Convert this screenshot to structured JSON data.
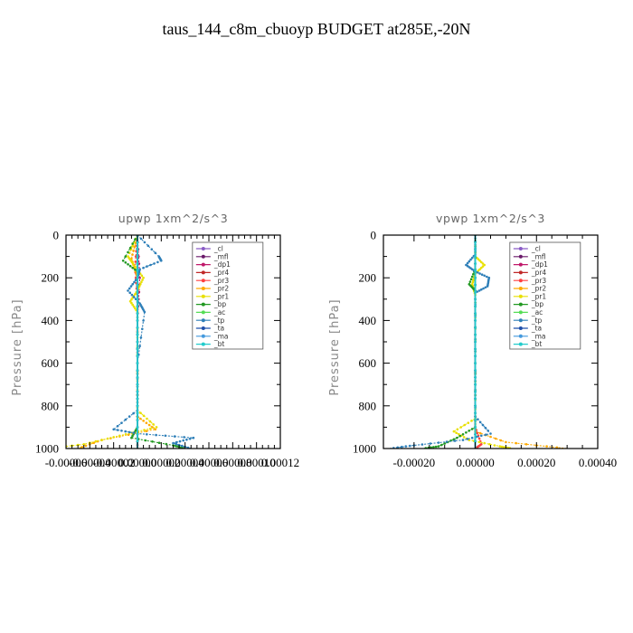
{
  "title": "taus_144_c8m_cbuoyp  BUDGET at285E,-20N",
  "chart_data": [
    {
      "type": "line",
      "title": "upwp   1xm^2/s^3",
      "ylabel": "Pressure [hPa]",
      "xlim": [
        -6e-05,
        0.00012
      ],
      "ylim": [
        1000,
        0
      ],
      "x_tick_labels": [
        "-0.00006",
        "-0.00004",
        "-0.00002",
        "0.00000",
        "0.00002",
        "0.00004",
        "0.00006",
        "0.00008",
        "0.00010",
        "0.00012"
      ],
      "y_tick_labels": [
        "0",
        "200",
        "400",
        "600",
        "800",
        "1000"
      ],
      "y_ticks": [
        0,
        200,
        400,
        600,
        800,
        1000
      ],
      "legend_position": "top-right",
      "series": [
        {
          "name": "_cl",
          "color": "#8a5cc6",
          "points": [
            [
              0.0,
              0
            ],
            [
              0.0,
              200
            ],
            [
              0.0,
              400
            ],
            [
              0.0,
              600
            ],
            [
              0.0,
              800
            ],
            [
              0.0,
              1000
            ]
          ]
        },
        {
          "name": "_mfl",
          "color": "#6a1a6a",
          "points": [
            [
              0.0,
              0
            ],
            [
              0.0,
              200
            ],
            [
              0.0,
              400
            ],
            [
              0.0,
              600
            ],
            [
              0.0,
              800
            ],
            [
              0.0,
              1000
            ]
          ]
        },
        {
          "name": "_dp1",
          "color": "#c0186a",
          "points": [
            [
              0.0,
              0
            ],
            [
              2e-06,
              200
            ],
            [
              0.0,
              400
            ],
            [
              0.0,
              600
            ],
            [
              0.0,
              800
            ],
            [
              0.0,
              1000
            ]
          ]
        },
        {
          "name": "_pr4",
          "color": "#c02828",
          "points": [
            [
              0.0,
              0
            ],
            [
              0.0,
              200
            ],
            [
              0.0,
              400
            ],
            [
              0.0,
              600
            ],
            [
              0.0,
              800
            ],
            [
              0.0,
              1000
            ]
          ]
        },
        {
          "name": "_pr3",
          "color": "#ff4040",
          "points": [
            [
              0.0,
              0
            ],
            [
              -2e-06,
              150
            ],
            [
              0.0,
              300
            ],
            [
              0.0,
              600
            ],
            [
              0.0,
              900
            ],
            [
              0.0,
              1000
            ]
          ]
        },
        {
          "name": "_pr2",
          "color": "#ffaa00",
          "points": [
            [
              0.0,
              0
            ],
            [
              -5e-06,
              110
            ],
            [
              0.0,
              200
            ],
            [
              0.0,
              600
            ],
            [
              0.0,
              850
            ],
            [
              1.5e-05,
              910
            ],
            [
              -3e-05,
              960
            ],
            [
              -5e-05,
              1000
            ]
          ]
        },
        {
          "name": "_pr1",
          "color": "#e8e000",
          "points": [
            [
              0.0,
              0
            ],
            [
              -8e-06,
              100
            ],
            [
              -3e-06,
              140
            ],
            [
              5e-06,
              200
            ],
            [
              0.0,
              260
            ],
            [
              -6e-06,
              310
            ],
            [
              0.0,
              360
            ],
            [
              0.0,
              600
            ],
            [
              0.0,
              820
            ],
            [
              1.6e-05,
              900
            ],
            [
              -1.5e-05,
              940
            ],
            [
              -4.5e-05,
              980
            ],
            [
              -7.5e-05,
              1000
            ]
          ]
        },
        {
          "name": "_bp",
          "color": "#229922",
          "points": [
            [
              0.0,
              0
            ],
            [
              -1.2e-05,
              120
            ],
            [
              0.0,
              170
            ],
            [
              0.0,
              600
            ],
            [
              0.0,
              900
            ],
            [
              -5e-06,
              950
            ],
            [
              3e-05,
              985
            ],
            [
              4e-05,
              1000
            ]
          ]
        },
        {
          "name": "_ac",
          "color": "#55dd55",
          "points": [
            [
              0.0,
              0
            ],
            [
              0.0,
              200
            ],
            [
              0.0,
              400
            ],
            [
              0.0,
              600
            ],
            [
              0.0,
              800
            ],
            [
              0.0,
              1000
            ]
          ]
        },
        {
          "name": "_tp",
          "color": "#2e7fb8",
          "points": [
            [
              0.0,
              0
            ],
            [
              1.8e-05,
              100
            ],
            [
              2e-05,
              120
            ],
            [
              2e-06,
              160
            ],
            [
              0.0,
              200
            ],
            [
              -8e-06,
              260
            ],
            [
              2e-06,
              320
            ],
            [
              6e-06,
              360
            ],
            [
              0.0,
              600
            ],
            [
              0.0,
              820
            ],
            [
              -2e-05,
              910
            ],
            [
              0.0,
              930
            ],
            [
              4.7e-05,
              950
            ],
            [
              3e-05,
              975
            ],
            [
              4.5e-05,
              1000
            ]
          ]
        },
        {
          "name": "_ta",
          "color": "#1f4faa",
          "points": [
            [
              0.0,
              0
            ],
            [
              0.0,
              200
            ],
            [
              0.0,
              400
            ],
            [
              0.0,
              600
            ],
            [
              0.0,
              800
            ],
            [
              0.0,
              1000
            ]
          ]
        },
        {
          "name": "_ma",
          "color": "#4499dd",
          "points": [
            [
              0.0,
              0
            ],
            [
              0.0,
              200
            ],
            [
              0.0,
              400
            ],
            [
              0.0,
              600
            ],
            [
              0.0,
              800
            ],
            [
              0.0,
              1000
            ]
          ]
        },
        {
          "name": "_bt",
          "color": "#22cccc",
          "points": [
            [
              0.0,
              0
            ],
            [
              0.0,
              200
            ],
            [
              0.0,
              400
            ],
            [
              0.0,
              600
            ],
            [
              0.0,
              800
            ],
            [
              0.0,
              1000
            ]
          ]
        }
      ]
    },
    {
      "type": "line",
      "title": "vpwp   1xm^2/s^3",
      "ylabel": "Pressure [hPa]",
      "xlim": [
        -0.0003,
        0.0004
      ],
      "ylim": [
        1000,
        0
      ],
      "x_tick_labels": [
        "-0.00020",
        "0.00000",
        "0.00020",
        "0.00040"
      ],
      "x_ticks": [
        -0.0002,
        0.0,
        0.0002,
        0.0004
      ],
      "y_tick_labels": [
        "0",
        "200",
        "400",
        "600",
        "800",
        "1000"
      ],
      "y_ticks": [
        0,
        200,
        400,
        600,
        800,
        1000
      ],
      "legend_position": "top-right",
      "series": [
        {
          "name": "_cl",
          "color": "#8a5cc6",
          "points": [
            [
              0.0,
              0
            ],
            [
              0.0,
              200
            ],
            [
              0.0,
              400
            ],
            [
              0.0,
              600
            ],
            [
              0.0,
              800
            ],
            [
              0.0,
              1000
            ]
          ]
        },
        {
          "name": "_mfl",
          "color": "#6a1a6a",
          "points": [
            [
              0.0,
              0
            ],
            [
              0.0,
              200
            ],
            [
              0.0,
              400
            ],
            [
              0.0,
              600
            ],
            [
              0.0,
              800
            ],
            [
              0.0,
              1000
            ]
          ]
        },
        {
          "name": "_dp1",
          "color": "#c0186a",
          "points": [
            [
              0.0,
              0
            ],
            [
              0.0,
              200
            ],
            [
              0.0,
              400
            ],
            [
              0.0,
              600
            ],
            [
              0.0,
              800
            ],
            [
              0.0,
              1000
            ]
          ]
        },
        {
          "name": "_pr4",
          "color": "#c02828",
          "points": [
            [
              0.0,
              0
            ],
            [
              0.0,
              200
            ],
            [
              0.0,
              400
            ],
            [
              0.0,
              600
            ],
            [
              0.0,
              800
            ],
            [
              0.0,
              1000
            ]
          ]
        },
        {
          "name": "_pr3",
          "color": "#ff4040",
          "points": [
            [
              0.0,
              0
            ],
            [
              0.0,
              200
            ],
            [
              0.0,
              400
            ],
            [
              0.0,
              600
            ],
            [
              0.0,
              900
            ],
            [
              2e-05,
              980
            ],
            [
              0.0,
              1000
            ]
          ]
        },
        {
          "name": "_pr2",
          "color": "#ffaa00",
          "points": [
            [
              0.0,
              0
            ],
            [
              0.0,
              200
            ],
            [
              0.0,
              600
            ],
            [
              0.0,
              850
            ],
            [
              0.0,
              920
            ],
            [
              0.0001,
              970
            ],
            [
              0.0003,
              1000
            ]
          ]
        },
        {
          "name": "_pr1",
          "color": "#e8e000",
          "points": [
            [
              0.0,
              0
            ],
            [
              0.0,
              100
            ],
            [
              3e-05,
              140
            ],
            [
              0.0,
              180
            ],
            [
              -1e-05,
              230
            ],
            [
              0.0,
              280
            ],
            [
              0.0,
              600
            ],
            [
              0.0,
              860
            ],
            [
              -7e-05,
              920
            ],
            [
              -2e-05,
              960
            ],
            [
              8e-05,
              990
            ],
            [
              0.00012,
              1000
            ]
          ]
        },
        {
          "name": "_bp",
          "color": "#229922",
          "points": [
            [
              0.0,
              0
            ],
            [
              0.0,
              160
            ],
            [
              -2e-05,
              230
            ],
            [
              0.0,
              260
            ],
            [
              0.0,
              600
            ],
            [
              0.0,
              900
            ],
            [
              -6e-05,
              950
            ],
            [
              -0.00012,
              990
            ],
            [
              -0.00017,
              1000
            ]
          ]
        },
        {
          "name": "_ac",
          "color": "#55dd55",
          "points": [
            [
              0.0,
              0
            ],
            [
              0.0,
              200
            ],
            [
              0.0,
              400
            ],
            [
              0.0,
              600
            ],
            [
              0.0,
              800
            ],
            [
              0.0,
              1000
            ]
          ]
        },
        {
          "name": "_tp",
          "color": "#2e7fb8",
          "points": [
            [
              0.0,
              0
            ],
            [
              0.0,
              90
            ],
            [
              -3e-05,
              140
            ],
            [
              0.0,
              170
            ],
            [
              4.5e-05,
              200
            ],
            [
              4e-05,
              240
            ],
            [
              0.0,
              270
            ],
            [
              0.0,
              600
            ],
            [
              0.0,
              850
            ],
            [
              5e-05,
              930
            ],
            [
              -4e-05,
              960
            ],
            [
              -0.0002,
              985
            ],
            [
              -0.00028,
              1000
            ]
          ]
        },
        {
          "name": "_ta",
          "color": "#1f4faa",
          "points": [
            [
              0.0,
              0
            ],
            [
              0.0,
              200
            ],
            [
              0.0,
              400
            ],
            [
              0.0,
              600
            ],
            [
              0.0,
              800
            ],
            [
              0.0,
              1000
            ]
          ]
        },
        {
          "name": "_ma",
          "color": "#4499dd",
          "points": [
            [
              0.0,
              0
            ],
            [
              0.0,
              200
            ],
            [
              0.0,
              400
            ],
            [
              0.0,
              600
            ],
            [
              0.0,
              800
            ],
            [
              0.0,
              1000
            ]
          ]
        },
        {
          "name": "_bt",
          "color": "#22cccc",
          "points": [
            [
              0.0,
              0
            ],
            [
              0.0,
              200
            ],
            [
              0.0,
              400
            ],
            [
              0.0,
              600
            ],
            [
              0.0,
              800
            ],
            [
              0.0,
              1000
            ]
          ]
        }
      ]
    }
  ]
}
